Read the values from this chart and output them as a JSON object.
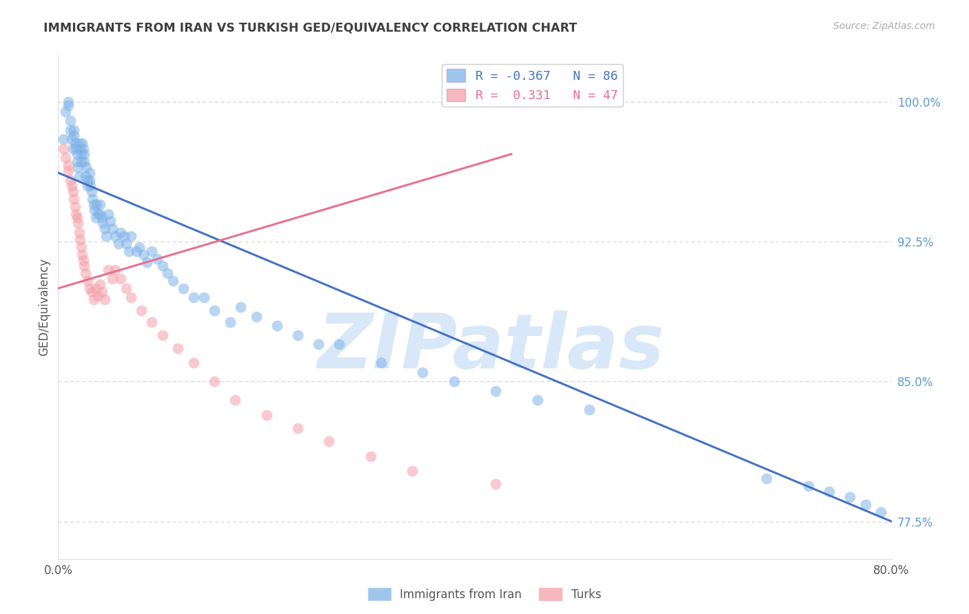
{
  "title": "IMMIGRANTS FROM IRAN VS TURKISH GED/EQUIVALENCY CORRELATION CHART",
  "source": "Source: ZipAtlas.com",
  "ylabel": "GED/Equivalency",
  "xmin": 0.0,
  "xmax": 0.8,
  "ymin": 0.755,
  "ymax": 1.025,
  "yticks": [
    1.0,
    0.925,
    0.85,
    0.775
  ],
  "ytick_labels": [
    "100.0%",
    "92.5%",
    "85.0%",
    "77.5%"
  ],
  "xticks": [
    0.0,
    0.2,
    0.4,
    0.6,
    0.8
  ],
  "xtick_labels": [
    "0.0%",
    "",
    "",
    "",
    "80.0%"
  ],
  "blue_R": -0.367,
  "blue_N": 86,
  "pink_R": 0.331,
  "pink_N": 47,
  "blue_color": "#7EB3E8",
  "pink_color": "#F4A0A8",
  "blue_line_color": "#4472C4",
  "pink_line_color": "#E87090",
  "background_color": "#FFFFFF",
  "grid_color": "#CCCCCC",
  "title_color": "#404040",
  "axis_label_color": "#555555",
  "right_axis_color": "#5B9BD5",
  "watermark_color": "#D8E8F8",
  "legend_blue_label": "Immigrants from Iran",
  "legend_pink_label": "Turks",
  "blue_line_x0": 0.0,
  "blue_line_x1": 0.8,
  "blue_line_y0": 0.962,
  "blue_line_y1": 0.775,
  "pink_line_x0": 0.0,
  "pink_line_x1": 0.435,
  "pink_line_y0": 0.9,
  "pink_line_y1": 0.972,
  "blue_x": [
    0.005,
    0.007,
    0.01,
    0.01,
    0.012,
    0.012,
    0.013,
    0.014,
    0.015,
    0.015,
    0.016,
    0.017,
    0.018,
    0.018,
    0.019,
    0.02,
    0.02,
    0.021,
    0.022,
    0.022,
    0.023,
    0.024,
    0.025,
    0.025,
    0.026,
    0.027,
    0.028,
    0.028,
    0.03,
    0.03,
    0.031,
    0.032,
    0.033,
    0.034,
    0.035,
    0.036,
    0.037,
    0.038,
    0.04,
    0.04,
    0.042,
    0.043,
    0.045,
    0.046,
    0.048,
    0.05,
    0.052,
    0.055,
    0.058,
    0.06,
    0.063,
    0.065,
    0.068,
    0.07,
    0.075,
    0.078,
    0.082,
    0.085,
    0.09,
    0.095,
    0.1,
    0.105,
    0.11,
    0.12,
    0.13,
    0.14,
    0.15,
    0.165,
    0.175,
    0.19,
    0.21,
    0.23,
    0.25,
    0.27,
    0.31,
    0.35,
    0.38,
    0.42,
    0.46,
    0.51,
    0.68,
    0.72,
    0.74,
    0.76,
    0.775,
    0.79
  ],
  "blue_y": [
    0.98,
    0.995,
    1.0,
    0.998,
    0.99,
    0.985,
    0.98,
    0.975,
    0.985,
    0.982,
    0.978,
    0.975,
    0.972,
    0.968,
    0.965,
    0.96,
    0.978,
    0.975,
    0.972,
    0.968,
    0.978,
    0.975,
    0.972,
    0.968,
    0.96,
    0.965,
    0.958,
    0.955,
    0.962,
    0.958,
    0.955,
    0.952,
    0.948,
    0.945,
    0.942,
    0.938,
    0.945,
    0.94,
    0.945,
    0.94,
    0.938,
    0.935,
    0.932,
    0.928,
    0.94,
    0.936,
    0.932,
    0.928,
    0.924,
    0.93,
    0.928,
    0.924,
    0.92,
    0.928,
    0.92,
    0.922,
    0.918,
    0.914,
    0.92,
    0.916,
    0.912,
    0.908,
    0.904,
    0.9,
    0.895,
    0.895,
    0.888,
    0.882,
    0.89,
    0.885,
    0.88,
    0.875,
    0.87,
    0.87,
    0.86,
    0.855,
    0.85,
    0.845,
    0.84,
    0.835,
    0.798,
    0.794,
    0.791,
    0.788,
    0.784,
    0.78
  ],
  "pink_x": [
    0.005,
    0.007,
    0.01,
    0.01,
    0.012,
    0.013,
    0.014,
    0.015,
    0.016,
    0.017,
    0.018,
    0.019,
    0.02,
    0.021,
    0.022,
    0.023,
    0.024,
    0.025,
    0.026,
    0.028,
    0.03,
    0.032,
    0.034,
    0.036,
    0.038,
    0.04,
    0.042,
    0.045,
    0.048,
    0.052,
    0.055,
    0.06,
    0.065,
    0.07,
    0.08,
    0.09,
    0.1,
    0.115,
    0.13,
    0.15,
    0.17,
    0.2,
    0.23,
    0.26,
    0.3,
    0.34,
    0.42
  ],
  "pink_y": [
    0.975,
    0.97,
    0.966,
    0.963,
    0.958,
    0.955,
    0.952,
    0.948,
    0.944,
    0.94,
    0.938,
    0.935,
    0.93,
    0.926,
    0.922,
    0.918,
    0.915,
    0.912,
    0.908,
    0.904,
    0.9,
    0.898,
    0.894,
    0.9,
    0.896,
    0.902,
    0.898,
    0.894,
    0.91,
    0.905,
    0.91,
    0.905,
    0.9,
    0.895,
    0.888,
    0.882,
    0.875,
    0.868,
    0.86,
    0.85,
    0.84,
    0.832,
    0.825,
    0.818,
    0.81,
    0.802,
    0.795
  ]
}
